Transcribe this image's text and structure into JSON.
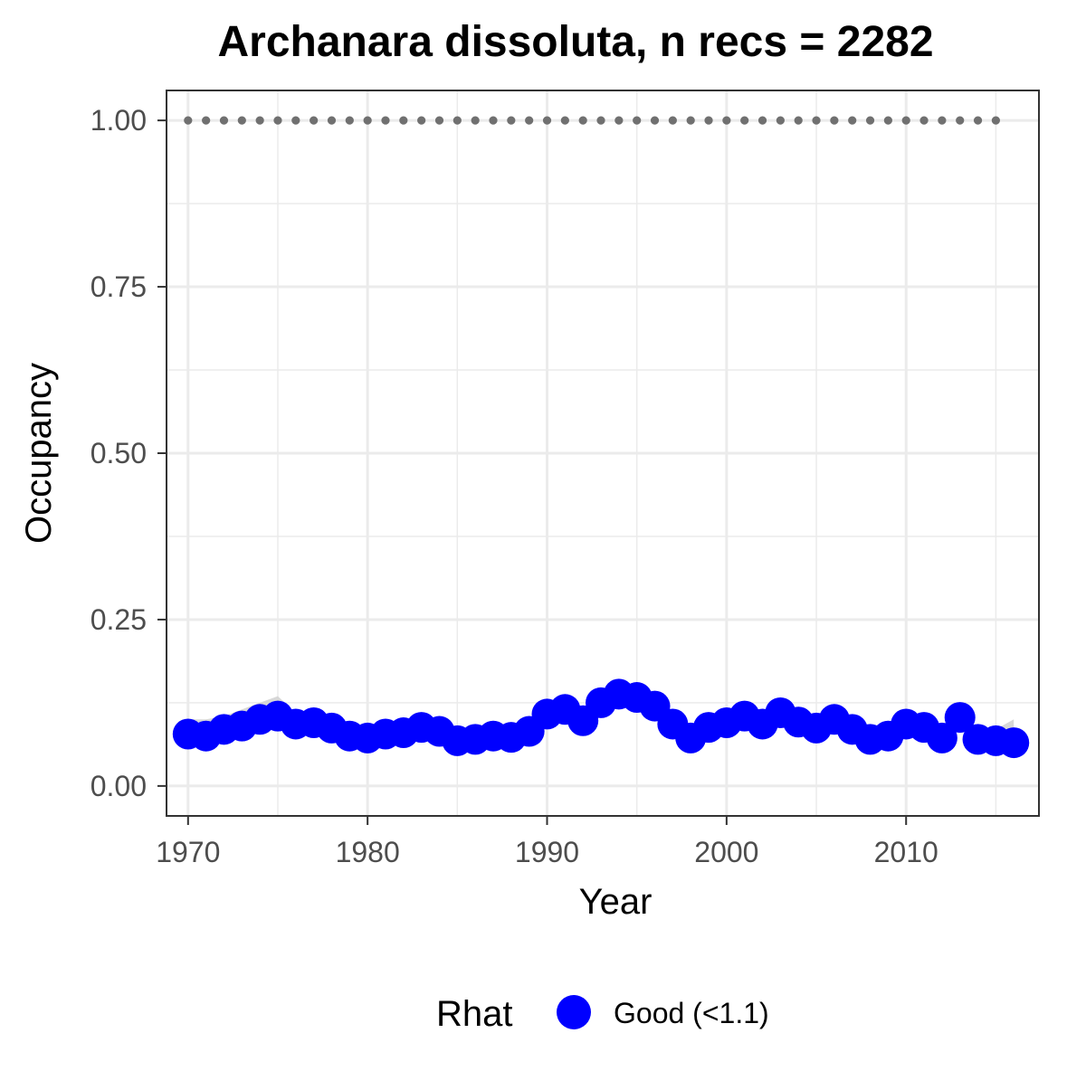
{
  "chart_data": {
    "type": "line",
    "title": "Archanara dissoluta, n recs = 2282",
    "xlabel": "Year",
    "ylabel": "Occupancy",
    "xlim": [
      1968.8,
      2017.4
    ],
    "ylim": [
      -0.045,
      1.045
    ],
    "x_ticks": [
      1970,
      1980,
      1990,
      2000,
      2010
    ],
    "x_tick_labels": [
      "1970",
      "1980",
      "1990",
      "2000",
      "2010"
    ],
    "y_ticks": [
      0,
      0.25,
      0.5,
      0.75,
      1.0
    ],
    "y_tick_labels": [
      "0.00",
      "0.25",
      "0.50",
      "0.75",
      "1.00"
    ],
    "grid": true,
    "legend": {
      "title": "Rhat",
      "position": "bottom",
      "entries": [
        {
          "label": "Good (<1.1)",
          "color": "#0000ff"
        }
      ]
    },
    "colors": {
      "points": "#0000ff",
      "ribbon": "#d3d3d3",
      "reference": "#707070",
      "grid": "#ebebeb",
      "panel_border": "#333333"
    },
    "series": [
      {
        "name": "Good (<1.1)",
        "role": "occupancy",
        "x": [
          1970,
          1971,
          1972,
          1973,
          1974,
          1975,
          1976,
          1977,
          1978,
          1979,
          1980,
          1981,
          1982,
          1983,
          1984,
          1985,
          1986,
          1987,
          1988,
          1989,
          1990,
          1991,
          1992,
          1993,
          1994,
          1995,
          1996,
          1997,
          1998,
          1999,
          2000,
          2001,
          2002,
          2003,
          2004,
          2005,
          2006,
          2007,
          2008,
          2009,
          2010,
          2011,
          2012,
          2013,
          2014,
          2015,
          2016
        ],
        "y": [
          0.078,
          0.075,
          0.085,
          0.09,
          0.1,
          0.105,
          0.093,
          0.095,
          0.087,
          0.075,
          0.072,
          0.078,
          0.08,
          0.088,
          0.082,
          0.068,
          0.07,
          0.075,
          0.073,
          0.082,
          0.108,
          0.115,
          0.098,
          0.125,
          0.138,
          0.133,
          0.12,
          0.093,
          0.072,
          0.088,
          0.095,
          0.105,
          0.093,
          0.11,
          0.096,
          0.087,
          0.1,
          0.085,
          0.07,
          0.075,
          0.093,
          0.088,
          0.072,
          0.103,
          0.07,
          0.068,
          0.065
        ]
      },
      {
        "name": "",
        "role": "credible-interval",
        "x": [
          1970,
          1971,
          1972,
          1973,
          1974,
          1975,
          1976,
          1977,
          1978,
          1979,
          1980,
          1981,
          1982,
          1983,
          1984,
          1985,
          1986,
          1987,
          1988,
          1989,
          1990,
          1991,
          1992,
          1993,
          1994,
          1995,
          1996,
          1997,
          1998,
          1999,
          2000,
          2001,
          2002,
          2003,
          2004,
          2005,
          2006,
          2007,
          2008,
          2009,
          2010,
          2011,
          2012,
          2013,
          2014,
          2015,
          2016
        ],
        "lower": [
          0.07,
          0.068,
          0.075,
          0.08,
          0.088,
          0.09,
          0.084,
          0.086,
          0.078,
          0.068,
          0.065,
          0.07,
          0.072,
          0.079,
          0.074,
          0.062,
          0.064,
          0.068,
          0.066,
          0.074,
          0.098,
          0.104,
          0.089,
          0.114,
          0.126,
          0.121,
          0.108,
          0.083,
          0.064,
          0.079,
          0.086,
          0.095,
          0.084,
          0.1,
          0.087,
          0.079,
          0.09,
          0.077,
          0.063,
          0.067,
          0.084,
          0.079,
          0.065,
          0.093,
          0.062,
          0.06,
          0.056
        ],
        "upper": [
          0.1,
          0.1,
          0.105,
          0.115,
          0.125,
          0.135,
          0.11,
          0.108,
          0.1,
          0.088,
          0.085,
          0.09,
          0.092,
          0.1,
          0.094,
          0.08,
          0.082,
          0.086,
          0.084,
          0.094,
          0.12,
          0.128,
          0.11,
          0.138,
          0.15,
          0.146,
          0.133,
          0.106,
          0.085,
          0.1,
          0.107,
          0.117,
          0.105,
          0.122,
          0.108,
          0.099,
          0.112,
          0.097,
          0.082,
          0.088,
          0.105,
          0.1,
          0.086,
          0.116,
          0.085,
          0.085,
          0.1
        ]
      },
      {
        "name": "",
        "role": "reference-line",
        "style": "dotted",
        "x": [
          1970,
          2015
        ],
        "y": [
          1.0,
          1.0
        ]
      }
    ]
  }
}
